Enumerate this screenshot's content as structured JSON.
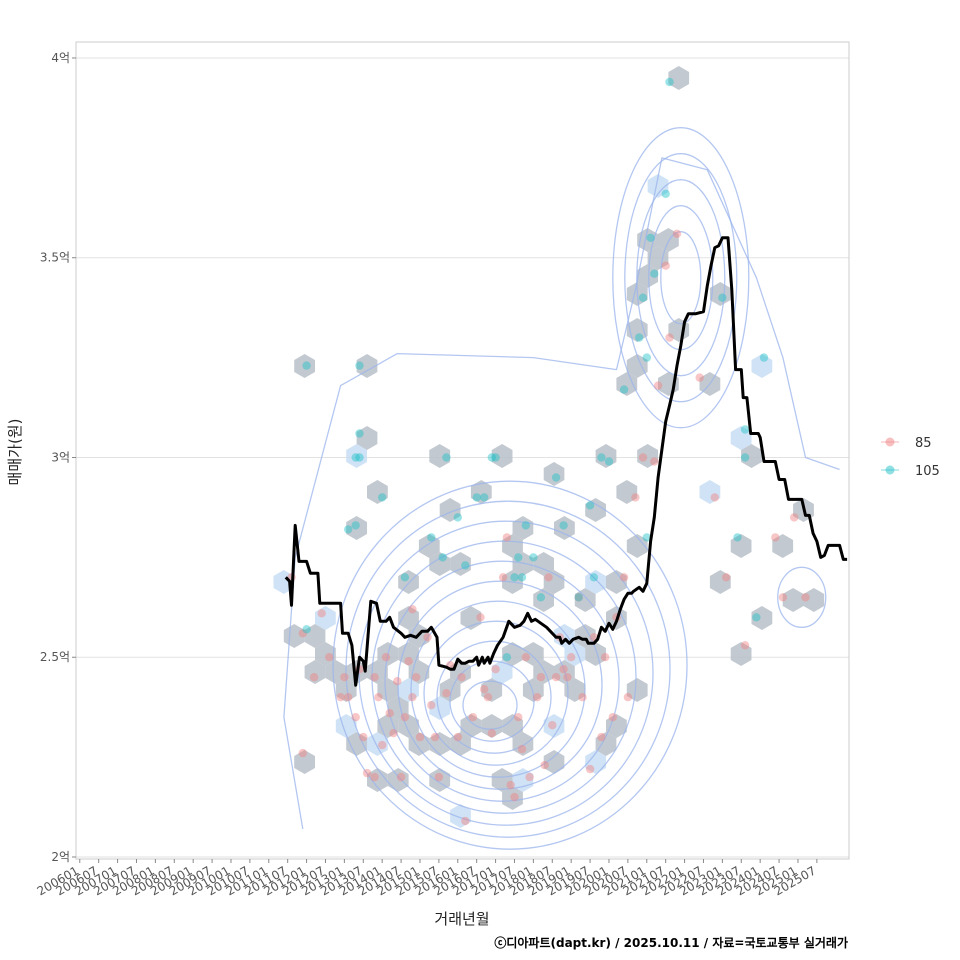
{
  "chart_data": {
    "type": "scatter",
    "title": "",
    "xlabel": "거래년월",
    "ylabel": "매매가(원)",
    "caption": "ⓒ디아파트(dapt.kr) / 2025.10.11 / 자료=국토교통부 실거래가",
    "x_ticks": [
      "200601",
      "200607",
      "200701",
      "200707",
      "200801",
      "200807",
      "200901",
      "200907",
      "201001",
      "201007",
      "201101",
      "201107",
      "201201",
      "201207",
      "201301",
      "201307",
      "201401",
      "201407",
      "201501",
      "201507",
      "201601",
      "201607",
      "201701",
      "201707",
      "201801",
      "201807",
      "201901",
      "201907",
      "202001",
      "202007",
      "202101",
      "202107",
      "202201",
      "202207",
      "202301",
      "202307",
      "202401",
      "202407",
      "202501",
      "202507"
    ],
    "y_ticks": [
      {
        "value": 2.0,
        "label": "2억"
      },
      {
        "value": 2.5,
        "label": "2.5억"
      },
      {
        "value": 3.0,
        "label": "3억"
      },
      {
        "value": 3.5,
        "label": "3.5억"
      },
      {
        "value": 4.0,
        "label": "4억"
      }
    ],
    "x_range": [
      2005.9,
      2026.35
    ],
    "y_range": [
      1.995,
      4.04
    ],
    "legend": {
      "position": "right",
      "items": [
        {
          "label": "85",
          "color": "#f08080"
        },
        {
          "label": "105",
          "color": "#20c0c8"
        }
      ]
    },
    "colors": {
      "hexbin": "#b8c0c8",
      "hexbin_light": "#c4dcf4",
      "contour": "#9bb4ec",
      "trend_line": "#000000",
      "grid": "#e2e2e2"
    },
    "series": [
      {
        "name": "85",
        "points": [
          [
            2011.6,
            2.7
          ],
          [
            2011.9,
            2.56
          ],
          [
            2012.2,
            2.45
          ],
          [
            2012.4,
            2.61
          ],
          [
            2011.9,
            2.26
          ],
          [
            2012.6,
            2.5
          ],
          [
            2012.9,
            2.4
          ],
          [
            2013.0,
            2.45
          ],
          [
            2013.1,
            2.4
          ],
          [
            2013.3,
            2.35
          ],
          [
            2013.4,
            2.47
          ],
          [
            2013.5,
            2.3
          ],
          [
            2013.6,
            2.21
          ],
          [
            2013.8,
            2.45
          ],
          [
            2013.8,
            2.2
          ],
          [
            2013.9,
            2.4
          ],
          [
            2014.0,
            2.28
          ],
          [
            2014.1,
            2.5
          ],
          [
            2014.2,
            2.36
          ],
          [
            2014.3,
            2.31
          ],
          [
            2014.4,
            2.44
          ],
          [
            2014.5,
            2.2
          ],
          [
            2014.6,
            2.35
          ],
          [
            2014.7,
            2.49
          ],
          [
            2014.8,
            2.4
          ],
          [
            2014.9,
            2.45
          ],
          [
            2015.0,
            2.3
          ],
          [
            2015.2,
            2.55
          ],
          [
            2015.3,
            2.38
          ],
          [
            2015.4,
            2.3
          ],
          [
            2015.5,
            2.2
          ],
          [
            2015.7,
            2.41
          ],
          [
            2015.8,
            2.48
          ],
          [
            2016.0,
            2.3
          ],
          [
            2016.1,
            2.45
          ],
          [
            2016.2,
            2.09
          ],
          [
            2016.4,
            2.35
          ],
          [
            2016.6,
            2.6
          ],
          [
            2016.8,
            2.4
          ],
          [
            2016.9,
            2.31
          ],
          [
            2017.0,
            2.47
          ],
          [
            2017.2,
            2.7
          ],
          [
            2017.3,
            2.8
          ],
          [
            2017.4,
            2.18
          ],
          [
            2017.5,
            2.15
          ],
          [
            2017.6,
            2.35
          ],
          [
            2017.7,
            2.27
          ],
          [
            2017.8,
            2.5
          ],
          [
            2017.9,
            2.2
          ],
          [
            2018.1,
            2.4
          ],
          [
            2018.2,
            2.45
          ],
          [
            2018.3,
            2.23
          ],
          [
            2018.4,
            2.7
          ],
          [
            2018.5,
            2.33
          ],
          [
            2018.6,
            2.45
          ],
          [
            2018.7,
            2.55
          ],
          [
            2018.9,
            2.45
          ],
          [
            2019.0,
            2.5
          ],
          [
            2019.2,
            2.65
          ],
          [
            2019.3,
            2.4
          ],
          [
            2019.5,
            2.22
          ],
          [
            2019.6,
            2.55
          ],
          [
            2019.8,
            2.3
          ],
          [
            2019.9,
            2.5
          ],
          [
            2020.1,
            2.35
          ],
          [
            2020.2,
            2.6
          ],
          [
            2020.4,
            2.7
          ],
          [
            2020.5,
            2.4
          ],
          [
            2020.7,
            2.9
          ],
          [
            2020.9,
            3.0
          ],
          [
            2021.2,
            2.99
          ],
          [
            2021.3,
            3.18
          ],
          [
            2021.5,
            3.48
          ],
          [
            2021.6,
            3.3
          ],
          [
            2021.8,
            3.56
          ],
          [
            2022.4,
            3.2
          ],
          [
            2022.8,
            2.9
          ],
          [
            2023.1,
            2.7
          ],
          [
            2023.6,
            2.53
          ],
          [
            2024.4,
            2.8
          ],
          [
            2024.6,
            2.65
          ],
          [
            2024.9,
            2.85
          ],
          [
            2025.2,
            2.65
          ],
          [
            2014.8,
            2.62
          ],
          [
            2016.7,
            2.42
          ],
          [
            2018.8,
            2.47
          ]
        ]
      },
      {
        "name": "105",
        "points": [
          [
            2012.0,
            3.23
          ],
          [
            2013.4,
            3.23
          ],
          [
            2012.0,
            2.57
          ],
          [
            2013.1,
            2.82
          ],
          [
            2013.3,
            2.83
          ],
          [
            2013.4,
            3.06
          ],
          [
            2013.3,
            3.0
          ],
          [
            2013.4,
            3.0
          ],
          [
            2014.0,
            2.9
          ],
          [
            2014.6,
            2.7
          ],
          [
            2015.3,
            2.8
          ],
          [
            2015.6,
            2.75
          ],
          [
            2015.7,
            3.0
          ],
          [
            2016.0,
            2.85
          ],
          [
            2016.2,
            2.73
          ],
          [
            2016.5,
            2.9
          ],
          [
            2016.7,
            2.9
          ],
          [
            2016.9,
            3.0
          ],
          [
            2017.0,
            3.0
          ],
          [
            2017.3,
            2.5
          ],
          [
            2017.5,
            2.7
          ],
          [
            2017.6,
            2.75
          ],
          [
            2017.7,
            2.7
          ],
          [
            2017.8,
            2.83
          ],
          [
            2018.0,
            2.75
          ],
          [
            2018.2,
            2.65
          ],
          [
            2018.6,
            2.95
          ],
          [
            2018.8,
            2.83
          ],
          [
            2019.2,
            2.65
          ],
          [
            2019.5,
            2.88
          ],
          [
            2019.6,
            2.7
          ],
          [
            2019.8,
            3.0
          ],
          [
            2020.0,
            2.99
          ],
          [
            2020.4,
            3.17
          ],
          [
            2020.8,
            3.3
          ],
          [
            2020.9,
            3.4
          ],
          [
            2021.0,
            3.25
          ],
          [
            2021.1,
            3.55
          ],
          [
            2021.2,
            3.46
          ],
          [
            2021.5,
            3.66
          ],
          [
            2021.6,
            3.94
          ],
          [
            2023.0,
            3.4
          ],
          [
            2023.6,
            3.07
          ],
          [
            2023.6,
            3.0
          ],
          [
            2023.4,
            2.8
          ],
          [
            2024.1,
            3.25
          ],
          [
            2023.9,
            2.6
          ],
          [
            2021.0,
            2.8
          ]
        ]
      }
    ],
    "trend_line": [
      [
        2011.45,
        2.7
      ],
      [
        2011.55,
        2.69
      ],
      [
        2011.6,
        2.63
      ],
      [
        2011.7,
        2.83
      ],
      [
        2011.8,
        2.74
      ],
      [
        2012.0,
        2.74
      ],
      [
        2012.1,
        2.71
      ],
      [
        2012.3,
        2.71
      ],
      [
        2012.35,
        2.635
      ],
      [
        2012.9,
        2.635
      ],
      [
        2012.95,
        2.56
      ],
      [
        2013.1,
        2.56
      ],
      [
        2013.2,
        2.53
      ],
      [
        2013.3,
        2.43
      ],
      [
        2013.4,
        2.5
      ],
      [
        2013.5,
        2.49
      ],
      [
        2013.55,
        2.465
      ],
      [
        2013.7,
        2.64
      ],
      [
        2013.85,
        2.635
      ],
      [
        2013.95,
        2.59
      ],
      [
        2014.1,
        2.59
      ],
      [
        2014.2,
        2.6
      ],
      [
        2014.3,
        2.575
      ],
      [
        2014.5,
        2.56
      ],
      [
        2014.6,
        2.55
      ],
      [
        2014.75,
        2.555
      ],
      [
        2014.9,
        2.55
      ],
      [
        2015.05,
        2.565
      ],
      [
        2015.2,
        2.565
      ],
      [
        2015.3,
        2.575
      ],
      [
        2015.45,
        2.55
      ],
      [
        2015.5,
        2.48
      ],
      [
        2015.7,
        2.475
      ],
      [
        2015.8,
        2.47
      ],
      [
        2015.9,
        2.47
      ],
      [
        2016.0,
        2.495
      ],
      [
        2016.1,
        2.485
      ],
      [
        2016.2,
        2.485
      ],
      [
        2016.3,
        2.49
      ],
      [
        2016.4,
        2.49
      ],
      [
        2016.5,
        2.5
      ],
      [
        2016.55,
        2.48
      ],
      [
        2016.65,
        2.5
      ],
      [
        2016.7,
        2.485
      ],
      [
        2016.8,
        2.5
      ],
      [
        2016.85,
        2.485
      ],
      [
        2016.95,
        2.51
      ],
      [
        2017.05,
        2.53
      ],
      [
        2017.2,
        2.55
      ],
      [
        2017.35,
        2.59
      ],
      [
        2017.5,
        2.575
      ],
      [
        2017.65,
        2.58
      ],
      [
        2017.75,
        2.59
      ],
      [
        2017.85,
        2.61
      ],
      [
        2017.95,
        2.59
      ],
      [
        2018.05,
        2.595
      ],
      [
        2018.2,
        2.585
      ],
      [
        2018.35,
        2.575
      ],
      [
        2018.5,
        2.56
      ],
      [
        2018.6,
        2.55
      ],
      [
        2018.7,
        2.55
      ],
      [
        2018.75,
        2.535
      ],
      [
        2018.85,
        2.545
      ],
      [
        2018.95,
        2.535
      ],
      [
        2019.05,
        2.545
      ],
      [
        2019.2,
        2.55
      ],
      [
        2019.3,
        2.545
      ],
      [
        2019.4,
        2.545
      ],
      [
        2019.45,
        2.535
      ],
      [
        2019.6,
        2.535
      ],
      [
        2019.7,
        2.545
      ],
      [
        2019.8,
        2.575
      ],
      [
        2019.9,
        2.565
      ],
      [
        2020.0,
        2.585
      ],
      [
        2020.1,
        2.57
      ],
      [
        2020.2,
        2.59
      ],
      [
        2020.3,
        2.62
      ],
      [
        2020.4,
        2.645
      ],
      [
        2020.5,
        2.66
      ],
      [
        2020.6,
        2.66
      ],
      [
        2020.65,
        2.665
      ],
      [
        2020.8,
        2.675
      ],
      [
        2020.9,
        2.665
      ],
      [
        2021.0,
        2.685
      ],
      [
        2021.1,
        2.79
      ],
      [
        2021.2,
        2.85
      ],
      [
        2021.3,
        2.95
      ],
      [
        2021.4,
        3.02
      ],
      [
        2021.5,
        3.09
      ],
      [
        2021.6,
        3.13
      ],
      [
        2021.7,
        3.17
      ],
      [
        2021.75,
        3.2
      ],
      [
        2021.8,
        3.23
      ],
      [
        2021.9,
        3.28
      ],
      [
        2022.0,
        3.34
      ],
      [
        2022.1,
        3.36
      ],
      [
        2022.3,
        3.36
      ],
      [
        2022.5,
        3.365
      ],
      [
        2022.6,
        3.43
      ],
      [
        2022.7,
        3.48
      ],
      [
        2022.8,
        3.525
      ],
      [
        2022.9,
        3.53
      ],
      [
        2023.0,
        3.55
      ],
      [
        2023.15,
        3.55
      ],
      [
        2023.25,
        3.42
      ],
      [
        2023.35,
        3.22
      ],
      [
        2023.5,
        3.22
      ],
      [
        2023.55,
        3.15
      ],
      [
        2023.65,
        3.15
      ],
      [
        2023.75,
        3.06
      ],
      [
        2023.95,
        3.06
      ],
      [
        2024.0,
        3.05
      ],
      [
        2024.1,
        2.99
      ],
      [
        2024.4,
        2.99
      ],
      [
        2024.5,
        2.945
      ],
      [
        2024.65,
        2.945
      ],
      [
        2024.75,
        2.895
      ],
      [
        2025.1,
        2.895
      ],
      [
        2025.2,
        2.855
      ],
      [
        2025.3,
        2.855
      ],
      [
        2025.4,
        2.81
      ],
      [
        2025.5,
        2.79
      ],
      [
        2025.6,
        2.75
      ],
      [
        2025.7,
        2.755
      ],
      [
        2025.8,
        2.78
      ],
      [
        2026.1,
        2.78
      ],
      [
        2026.2,
        2.745
      ],
      [
        2026.3,
        2.745
      ]
    ]
  }
}
